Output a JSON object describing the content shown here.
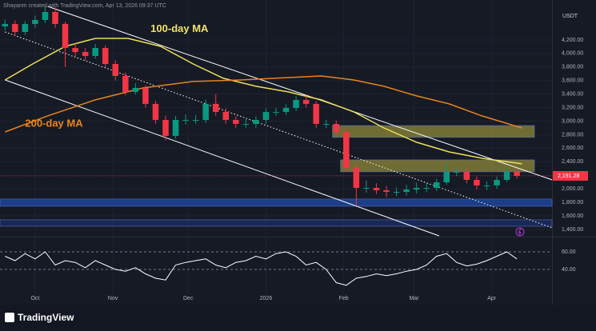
{
  "chart_data": {
    "type": "candlestick",
    "caption": "Shayanm created with TradingView.com, Apr 13, 2026 09:37 UTC",
    "brand": "TradingView",
    "currency": "USDT",
    "last_price": {
      "value": 2191.28,
      "label": "2,191.28"
    },
    "up_color": "#089981",
    "down_color": "#f23645",
    "x": [
      -12,
      -8,
      -4,
      0,
      4,
      8,
      12,
      16,
      20,
      24,
      28,
      32,
      36,
      40,
      44,
      48,
      52,
      56,
      60,
      64,
      68,
      72,
      76,
      80,
      84,
      88,
      92,
      96,
      100,
      104,
      108,
      112,
      116,
      120,
      124,
      128,
      132,
      136,
      140,
      144,
      148,
      152,
      156,
      160,
      164,
      168,
      172,
      176,
      180,
      184,
      188,
      192
    ],
    "open": [
      4400,
      4436,
      4318,
      4436,
      4495,
      4613,
      4436,
      4081,
      4022,
      3963,
      4081,
      3845,
      3668,
      3432,
      3491,
      3255,
      3018,
      2782,
      3018,
      3018,
      3018,
      3255,
      3136,
      3018,
      2959,
      2959,
      3018,
      3136,
      3136,
      3195,
      3313,
      3255,
      2959,
      2959,
      2841,
      2309,
      2014,
      2014,
      1979,
      1955,
      1955,
      1990,
      2014,
      2014,
      2096,
      2250,
      2250,
      2132,
      2050,
      2050,
      2132,
      2250
    ],
    "high": [
      4500,
      4490,
      4480,
      4560,
      4700,
      4680,
      4470,
      4150,
      4080,
      4140,
      4120,
      3900,
      3720,
      3560,
      3530,
      3300,
      3080,
      3080,
      3100,
      3090,
      3320,
      3400,
      3190,
      3070,
      3030,
      3070,
      3190,
      3200,
      3250,
      3370,
      3380,
      3300,
      3020,
      3010,
      2880,
      2360,
      2120,
      2080,
      2040,
      2020,
      2060,
      2090,
      2080,
      2150,
      2380,
      2320,
      2300,
      2180,
      2110,
      2180,
      2310,
      2290
    ],
    "low": [
      4340,
      4260,
      4270,
      4380,
      4450,
      4380,
      3800,
      3960,
      3900,
      3920,
      3790,
      3600,
      3380,
      3390,
      3200,
      2960,
      2720,
      2740,
      2950,
      2960,
      2970,
      3080,
      2960,
      2900,
      2900,
      2900,
      2960,
      3080,
      3090,
      3150,
      3200,
      2900,
      2900,
      2780,
      2250,
      1750,
      1940,
      1920,
      1880,
      1890,
      1900,
      1930,
      1950,
      1970,
      2060,
      2190,
      2080,
      1990,
      1980,
      2000,
      2100,
      2150
    ],
    "close": [
      4436,
      4318,
      4436,
      4495,
      4613,
      4436,
      4081,
      4022,
      3963,
      4081,
      3845,
      3668,
      3432,
      3491,
      3255,
      3018,
      2782,
      3018,
      3018,
      3018,
      3255,
      3136,
      3018,
      2959,
      2959,
      3018,
      3136,
      3136,
      3195,
      3313,
      3255,
      2959,
      2959,
      2841,
      2309,
      2014,
      2014,
      1979,
      1955,
      1955,
      1990,
      2014,
      2014,
      2096,
      2250,
      2250,
      2132,
      2050,
      2050,
      2132,
      2250,
      2191
    ],
    "series": [
      {
        "name": "100-day MA",
        "color": "#ecdf5a",
        "x": [
          -12,
          -1,
          12,
          24,
          37,
          50,
          63,
          75,
          88,
          101,
          114,
          127,
          139,
          152,
          165,
          178,
          194
        ],
        "values": [
          3609,
          3845,
          4105,
          4223,
          4223,
          4105,
          3845,
          3633,
          3515,
          3432,
          3314,
          3137,
          2900,
          2688,
          2546,
          2452,
          2369
        ]
      },
      {
        "name": "200-day MA",
        "color": "#e8841c",
        "x": [
          -12,
          5,
          24,
          43,
          63,
          82,
          101,
          114,
          127,
          139,
          152,
          165,
          178,
          194
        ],
        "values": [
          2841,
          3078,
          3314,
          3491,
          3586,
          3609,
          3644,
          3668,
          3609,
          3515,
          3373,
          3255,
          3078,
          2900
        ]
      }
    ],
    "annotations": [
      {
        "text": "100-day MA",
        "color": "#f2e36a",
        "x": 46,
        "y": 4360
      },
      {
        "text": "200-day MA",
        "color": "#e8841c",
        "x": -4,
        "y": 2960
      }
    ],
    "trendlines": [
      {
        "x": [
          5,
          206
        ],
        "y": [
          4696,
          2133
        ],
        "color": "#ffffff",
        "dashed": false
      },
      {
        "x": [
          -12,
          161
        ],
        "y": [
          3609,
          1305
        ],
        "color": "#ffffff",
        "dashed": false
      },
      {
        "x": [
          -12,
          206
        ],
        "y": [
          4318,
          1424
        ],
        "color": "#ffffff",
        "dashed": true
      }
    ],
    "zones": [
      {
        "x": [
          118.5,
          199
        ],
        "range": [
          2760,
          2935
        ],
        "color": "#8f8a3a"
      },
      {
        "x": [
          121.7,
          199
        ],
        "range": [
          2251,
          2428
        ],
        "color": "#8f8a3a"
      },
      {
        "x": [
          -14,
          206
        ],
        "range": [
          1743,
          1849
        ],
        "color": "#1f4aa8"
      },
      {
        "x": [
          -14,
          206
        ],
        "range": [
          1447,
          1542
        ],
        "color": "#1a2f66"
      }
    ],
    "xlim": [
      -14,
      206
    ],
    "xticks": [
      {
        "value": 0,
        "label": "Oct"
      },
      {
        "value": 31,
        "label": "Nov"
      },
      {
        "value": 61,
        "label": "Dec"
      },
      {
        "value": 92,
        "label": "2026"
      },
      {
        "value": 123,
        "label": "Feb"
      },
      {
        "value": 151,
        "label": "Mar"
      },
      {
        "value": 182,
        "label": "Apr"
      }
    ],
    "ylim": [
      1305,
      4790
    ],
    "yticks": [
      {
        "value": 1400,
        "label": "1,400.00"
      },
      {
        "value": 1600,
        "label": "1,600.00"
      },
      {
        "value": 1800,
        "label": "1,800.00"
      },
      {
        "value": 2000,
        "label": "2,000.00"
      },
      {
        "value": 2200,
        "label": "2,200.00"
      },
      {
        "value": 2400,
        "label": "2,400.00"
      },
      {
        "value": 2600,
        "label": "2,600.00"
      },
      {
        "value": 2800,
        "label": "2,800.00"
      },
      {
        "value": 3000,
        "label": "3,000.00"
      },
      {
        "value": 3200,
        "label": "3,200.00"
      },
      {
        "value": 3400,
        "label": "3,400.00"
      },
      {
        "value": 3600,
        "label": "3,600.00"
      },
      {
        "value": 3800,
        "label": "3,800.00"
      },
      {
        "value": 4000,
        "label": "4,000.00"
      },
      {
        "value": 4200,
        "label": "4,200.00"
      }
    ],
    "grid": true,
    "rsi": {
      "color": "#ffffff",
      "values": [
        55,
        50,
        58,
        52,
        60,
        45,
        50,
        48,
        42,
        50,
        45,
        40,
        38,
        42,
        35,
        30,
        28,
        45,
        48,
        50,
        52,
        45,
        42,
        48,
        50,
        55,
        52,
        58,
        60,
        55,
        45,
        48,
        40,
        25,
        22,
        30,
        32,
        35,
        33,
        35,
        38,
        40,
        45,
        55,
        58,
        48,
        44,
        46,
        50,
        55,
        60,
        52
      ],
      "ylim": [
        13.6,
        75.5
      ],
      "yticks": [
        {
          "value": 60,
          "label": "60.00"
        },
        {
          "value": 40,
          "label": "40.00"
        }
      ]
    }
  }
}
